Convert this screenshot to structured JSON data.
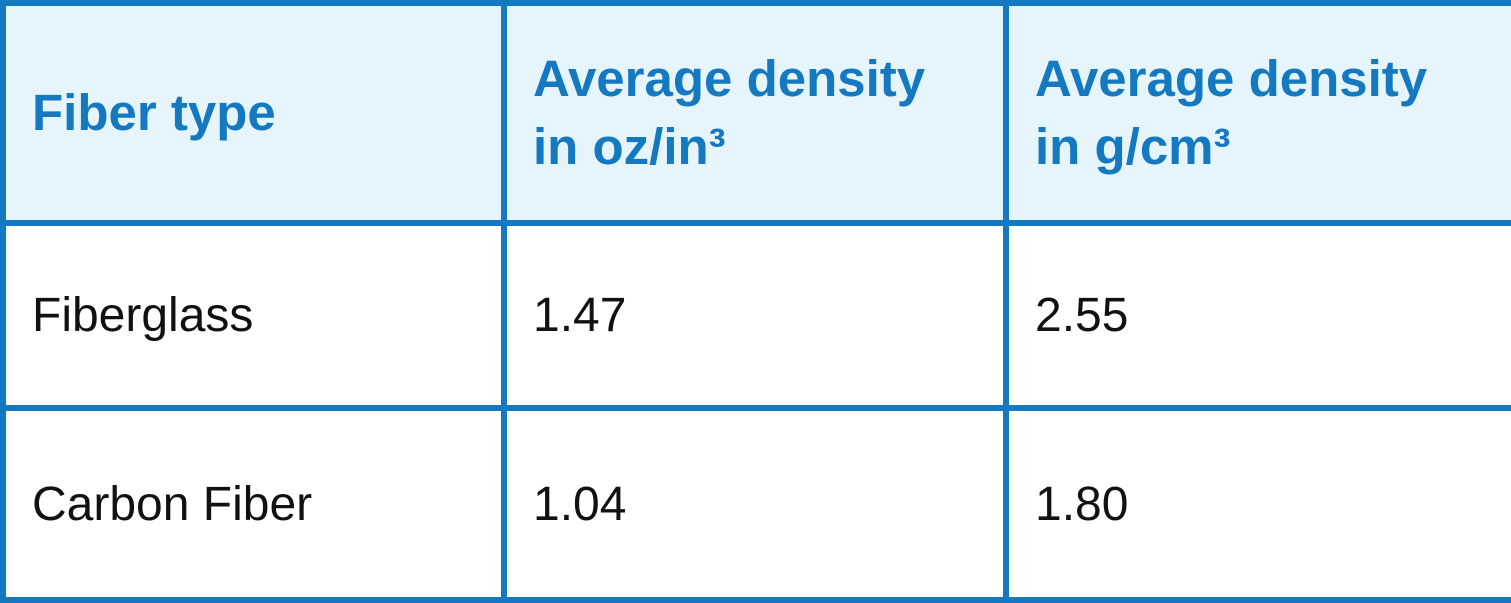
{
  "table": {
    "headers": [
      {
        "line1": "Fiber type",
        "line2": ""
      },
      {
        "line1": "Average density",
        "line2": "in oz/in³"
      },
      {
        "line1": "Average density",
        "line2": "in g/cm³"
      }
    ],
    "rows": [
      [
        "Fiberglass",
        "1.47",
        "2.55"
      ],
      [
        "Carbon Fiber",
        "1.04",
        "1.80"
      ]
    ]
  },
  "colors": {
    "border": "#1479c1",
    "header_background": "#e6f4fb",
    "header_text": "#1479c1",
    "body_text": "#111111"
  }
}
